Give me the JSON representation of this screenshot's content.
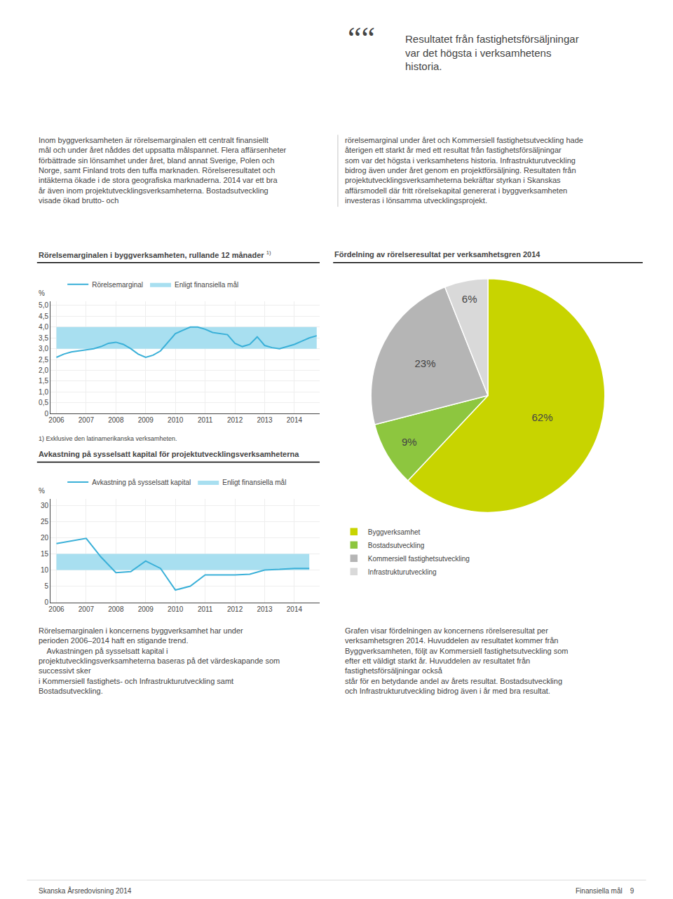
{
  "chart_data": [
    {
      "type": "line",
      "title": "Rörelsemarginalen i byggverksamheten, rullande 12 månader",
      "ylabel": "%",
      "x": [
        2006,
        2006.25,
        2006.5,
        2006.75,
        2007,
        2007.25,
        2007.5,
        2007.75,
        2008,
        2008.25,
        2008.5,
        2008.75,
        2009,
        2009.25,
        2009.5,
        2009.75,
        2010,
        2010.25,
        2010.5,
        2010.75,
        2011,
        2011.25,
        2011.5,
        2011.75,
        2012,
        2012.25,
        2012.5,
        2012.75,
        2013,
        2013.25,
        2013.5,
        2013.75,
        2014,
        2014.25,
        2014.5,
        2014.75
      ],
      "series": [
        {
          "name": "Rörelsemarginal",
          "color": "#3ab0d8",
          "values": [
            2.6,
            2.75,
            2.85,
            2.9,
            2.95,
            3.0,
            3.1,
            3.25,
            3.3,
            3.2,
            3.0,
            2.75,
            2.6,
            2.7,
            2.9,
            3.3,
            3.7,
            3.85,
            4.0,
            4.0,
            3.9,
            3.75,
            3.7,
            3.65,
            3.25,
            3.1,
            3.2,
            3.55,
            3.15,
            3.05,
            3.0,
            3.1,
            3.2,
            3.35,
            3.5,
            3.6
          ]
        },
        {
          "name": "Enligt finansiella mål",
          "type": "band",
          "color": "#a8dff0",
          "low": 3.0,
          "high": 4.0
        }
      ],
      "xlim": [
        2005.8,
        2014.85
      ],
      "xticks": [
        2006,
        2007,
        2008,
        2009,
        2010,
        2011,
        2012,
        2013,
        2014
      ],
      "ylim": [
        0,
        5.2
      ],
      "yticks": [
        0,
        {
          "value": 0.5,
          "label": "0,5"
        },
        {
          "value": 1.0,
          "label": "1,0"
        },
        {
          "value": 1.5,
          "label": "1,5"
        },
        {
          "value": 2.0,
          "label": "2,0"
        },
        {
          "value": 2.5,
          "label": "2,5"
        },
        {
          "value": 3.0,
          "label": "3,0"
        },
        {
          "value": 3.5,
          "label": "3,5"
        },
        {
          "value": 4.0,
          "label": "4,0"
        },
        {
          "value": 4.5,
          "label": "4,5"
        },
        {
          "value": 5.0,
          "label": "5,0"
        }
      ],
      "grid": true,
      "legend": "upper left",
      "annotations": [
        "1)",
        "1) Exklusive den latinamerikanska verksamheten."
      ]
    },
    {
      "type": "line",
      "title": "Avkastning på sysselsatt kapital för projektutvecklingsverksamheterna",
      "ylabel": "%",
      "x": [
        2006,
        2006.5,
        2007,
        2007.5,
        2008,
        2008.5,
        2009,
        2009.5,
        2010,
        2010.5,
        2011,
        2011.5,
        2012,
        2012.5,
        2013,
        2013.5,
        2014,
        2014.5
      ],
      "series": [
        {
          "name": "Avkastning på sysselsatt kapital",
          "color": "#3ab0d8",
          "values": [
            18.2,
            19.0,
            19.8,
            14.0,
            9.2,
            9.5,
            12.8,
            10.5,
            3.8,
            5.0,
            8.5,
            8.5,
            8.5,
            8.7,
            10.0,
            10.2,
            10.5,
            10.5
          ]
        },
        {
          "name": "Enligt finansiella mål",
          "type": "band",
          "color": "#a8dff0",
          "low": 10,
          "high": 15
        }
      ],
      "xlim": [
        2005.8,
        2014.85
      ],
      "xticks": [
        2006,
        2007,
        2008,
        2009,
        2010,
        2011,
        2012,
        2013,
        2014
      ],
      "ylim": [
        0,
        32
      ],
      "yticks": [
        0,
        5,
        10,
        15,
        20,
        25,
        30
      ],
      "grid": true,
      "legend": "upper left"
    },
    {
      "type": "pie",
      "title": "Fördelning av rörelseresultat per verksamhetsgren 2014",
      "categories": [
        "Byggverksamhet",
        "Bostadsutveckling",
        "Kommersiell fastighetsutveckling",
        "Infrastrukturutveckling"
      ],
      "values": [
        62,
        9,
        23,
        6
      ],
      "value_labels": [
        "62%",
        "9%",
        "23%",
        "6%"
      ],
      "colors": [
        "#c8d400",
        "#8dc63f",
        "#b5b5b5",
        "#d9d9d9"
      ],
      "data_labels": true,
      "legend": "lower left"
    }
  ],
  "annotations": [
    "““",
    "Resultatet från fastighetsförsäljningar\nvar det högsta i verksamhetens\nhistoria.",
    "Inom byggverksamheten är rörelsemarginalen ett centralt finansiellt mål och under året nåddes det uppsatta målspannet. Flera affärsenheter förbättrade sin lönsamhet under året, bland annat Sverige, Polen och Norge, samt Finland trots den tuffa marknaden. Rörelseresultatet och intäkterna ökade i de stora geografiska marknaderna. 2014 var ett bra år även inom projektutvecklingsverksamheterna. Bostadsutveckling visade ökad brutto- och",
    "rörelsemarginal under året och Kommersiell fastighetsutveckling hade återigen ett starkt år med ett resultat från fastighetsförsäljningar som var det högsta i verksamhetens historia. Infrastrukturutveckling bidrog även under året genom en projektförsäljning. Resultaten från projektutvecklingsverksamheterna bekräftar styrkan i Skanskas affärsmodell där fritt rörelsekapital genererat i byggverksamheten investeras i lönsamma utvecklingsprojekt.",
    "Rörelsemarginalen i koncernens byggverksamhet har under\nperioden 2006–2014 haft en stigande trend.\n    Avkastningen på sysselsatt kapital i projektutvecklingsverksamheterna baseras på det värdeskapande som successivt sker\ni Kommersiell fastighets- och Infrastrukturutveckling samt\nBostadsutveckling.",
    "Grafen visar fördelningen av koncernens rörelseresultat per\nverksamhetsgren 2014. Huvuddelen av resultatet kommer från\nByggverksamheten, följt av Kommersiell fastighetsutveckling som\nefter ett väldigt starkt år. Huvuddelen av resultatet från fastighetsförsäljningar också\nstår för en betydande andel av årets resultat. Bostadsutveckling\noch Infrastrukturutveckling bidrog även i år med bra resultat.",
    "Skanska Årsredovisning 2014",
    "Finansiella mål    9"
  ]
}
